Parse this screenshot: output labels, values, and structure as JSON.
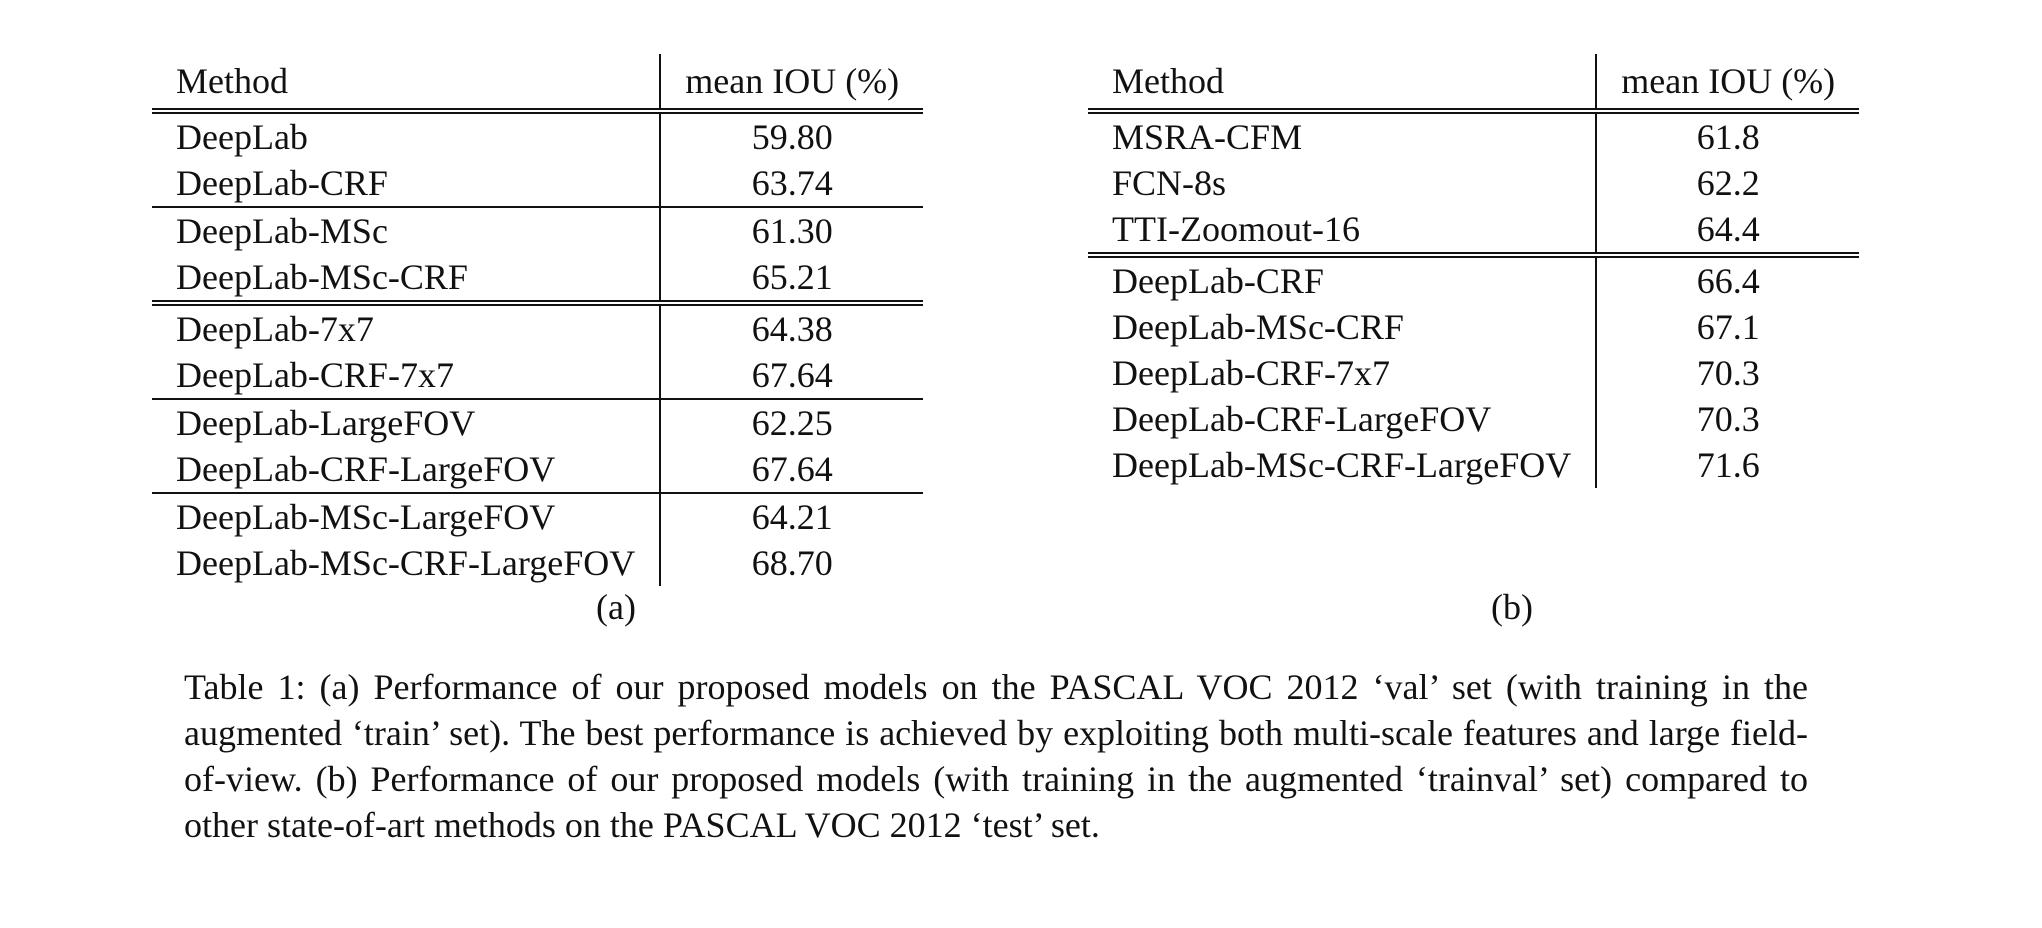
{
  "table_a": {
    "header": {
      "method": "Method",
      "metric": "mean IOU (%)"
    },
    "groups": [
      [
        {
          "method": "DeepLab",
          "value": "59.80"
        },
        {
          "method": "DeepLab-CRF",
          "value": "63.74"
        }
      ],
      [
        {
          "method": "DeepLab-MSc",
          "value": "61.30"
        },
        {
          "method": "DeepLab-MSc-CRF",
          "value": "65.21"
        }
      ],
      [
        {
          "method": "DeepLab-7x7",
          "value": "64.38"
        },
        {
          "method": "DeepLab-CRF-7x7",
          "value": "67.64"
        }
      ],
      [
        {
          "method": "DeepLab-LargeFOV",
          "value": "62.25"
        },
        {
          "method": "DeepLab-CRF-LargeFOV",
          "value": "67.64"
        }
      ],
      [
        {
          "method": "DeepLab-MSc-LargeFOV",
          "value": "64.21"
        },
        {
          "method": "DeepLab-MSc-CRF-LargeFOV",
          "value": "68.70"
        }
      ]
    ],
    "separators": [
      "double",
      "single",
      "double",
      "single",
      "single"
    ],
    "label": "(a)"
  },
  "table_b": {
    "header": {
      "method": "Method",
      "metric": "mean IOU (%)"
    },
    "groups": [
      [
        {
          "method": "MSRA-CFM",
          "value": "61.8"
        },
        {
          "method": "FCN-8s",
          "value": "62.2"
        },
        {
          "method": "TTI-Zoomout-16",
          "value": "64.4"
        }
      ],
      [
        {
          "method": "DeepLab-CRF",
          "value": "66.4"
        },
        {
          "method": "DeepLab-MSc-CRF",
          "value": "67.1"
        },
        {
          "method": "DeepLab-CRF-7x7",
          "value": "70.3"
        },
        {
          "method": "DeepLab-CRF-LargeFOV",
          "value": "70.3"
        },
        {
          "method": "DeepLab-MSc-CRF-LargeFOV",
          "value": "71.6"
        }
      ]
    ],
    "separators": [
      "double",
      "double"
    ],
    "label": "(b)"
  },
  "caption": "Table 1: (a) Performance of our proposed models on the PASCAL VOC 2012 ‘val’ set (with training in the augmented ‘train’ set). The best performance is achieved by exploiting both multi-scale features and large field-of-view. (b) Performance of our proposed models (with training in the augmented ‘trainval’ set) compared to other state-of-art methods on the PASCAL VOC 2012 ‘test’ set."
}
